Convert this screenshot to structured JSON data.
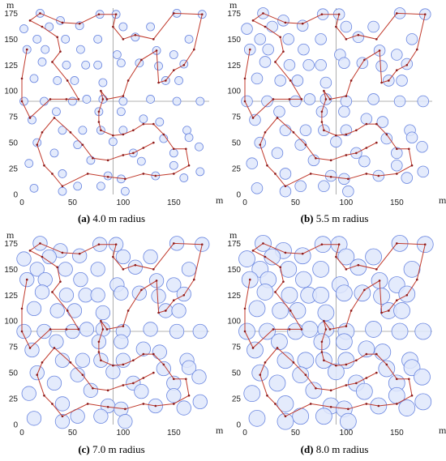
{
  "chart_data": [
    {
      "type": "scatter",
      "panel_label": "(a)",
      "caption": "4.0 m radius",
      "radius": 4.0,
      "xlabel": "m",
      "ylabel": "m",
      "xlim": [
        0,
        185
      ],
      "ylim": [
        0,
        180
      ],
      "xticks": [
        0,
        50,
        100,
        150
      ],
      "yticks": [
        0,
        25,
        50,
        75,
        100,
        125,
        150,
        175
      ],
      "crosshair": [
        90,
        90
      ],
      "grid": false
    },
    {
      "type": "scatter",
      "panel_label": "(b)",
      "caption": "5.5 m radius",
      "radius": 5.5,
      "xlabel": "m",
      "ylabel": "m",
      "xlim": [
        0,
        185
      ],
      "ylim": [
        0,
        180
      ],
      "xticks": [
        0,
        50,
        100,
        150
      ],
      "yticks": [
        0,
        25,
        50,
        75,
        100,
        125,
        150,
        175
      ],
      "crosshair": [
        90,
        90
      ],
      "grid": false
    },
    {
      "type": "scatter",
      "panel_label": "(c)",
      "caption": "7.0 m radius",
      "radius": 7.0,
      "xlabel": "m",
      "ylabel": "m",
      "xlim": [
        0,
        185
      ],
      "ylim": [
        0,
        180
      ],
      "xticks": [
        0,
        50,
        100,
        150
      ],
      "yticks": [
        0,
        25,
        50,
        75,
        100,
        125,
        150,
        175
      ],
      "crosshair": [
        90,
        90
      ],
      "grid": false
    },
    {
      "type": "scatter",
      "panel_label": "(d)",
      "caption": "8.0 m radius",
      "radius": 8.0,
      "xlabel": "m",
      "ylabel": "m",
      "xlim": [
        0,
        185
      ],
      "ylim": [
        0,
        180
      ],
      "xticks": [
        0,
        50,
        100,
        150
      ],
      "yticks": [
        0,
        25,
        50,
        75,
        100,
        125,
        150,
        175
      ],
      "crosshair": [
        90,
        90
      ],
      "grid": false
    }
  ],
  "sensor_points": [
    [
      18,
      175
    ],
    [
      38,
      168
    ],
    [
      27,
      162
    ],
    [
      57,
      163
    ],
    [
      77,
      174
    ],
    [
      93,
      174
    ],
    [
      100,
      162
    ],
    [
      127,
      162
    ],
    [
      153,
      175
    ],
    [
      178,
      174
    ],
    [
      2,
      160
    ],
    [
      15,
      150
    ],
    [
      43,
      150
    ],
    [
      75,
      150
    ],
    [
      112,
      152
    ],
    [
      165,
      150
    ],
    [
      5,
      140
    ],
    [
      23,
      140
    ],
    [
      58,
      140
    ],
    [
      94,
      135
    ],
    [
      133,
      139
    ],
    [
      150,
      135
    ],
    [
      20,
      128
    ],
    [
      44,
      125
    ],
    [
      63,
      125
    ],
    [
      75,
      125
    ],
    [
      98,
      127
    ],
    [
      116,
      127
    ],
    [
      135,
      124
    ],
    [
      160,
      126
    ],
    [
      12,
      112
    ],
    [
      35,
      110
    ],
    [
      52,
      110
    ],
    [
      80,
      108
    ],
    [
      142,
      110
    ],
    [
      155,
      110
    ],
    [
      2,
      90
    ],
    [
      22,
      90
    ],
    [
      50,
      90
    ],
    [
      64,
      92
    ],
    [
      80,
      92
    ],
    [
      100,
      90
    ],
    [
      127,
      92
    ],
    [
      153,
      90
    ],
    [
      176,
      90
    ],
    [
      10,
      72
    ],
    [
      34,
      80
    ],
    [
      76,
      80
    ],
    [
      98,
      80
    ],
    [
      120,
      73
    ],
    [
      40,
      62
    ],
    [
      60,
      62
    ],
    [
      78,
      62
    ],
    [
      100,
      62
    ],
    [
      136,
      70
    ],
    [
      163,
      62
    ],
    [
      15,
      50
    ],
    [
      55,
      48
    ],
    [
      90,
      51
    ],
    [
      140,
      54
    ],
    [
      165,
      55
    ],
    [
      175,
      46
    ],
    [
      32,
      40
    ],
    [
      110,
      40
    ],
    [
      150,
      40
    ],
    [
      7,
      30
    ],
    [
      68,
      33
    ],
    [
      118,
      32
    ],
    [
      150,
      28
    ],
    [
      176,
      22
    ],
    [
      40,
      20
    ],
    [
      85,
      18
    ],
    [
      98,
      15
    ],
    [
      132,
      18
    ],
    [
      160,
      16
    ],
    [
      12,
      6
    ],
    [
      40,
      3
    ],
    [
      55,
      8
    ],
    [
      78,
      8
    ],
    [
      102,
      3
    ]
  ],
  "route": [
    [
      5,
      140
    ],
    [
      0,
      112
    ],
    [
      0,
      90
    ],
    [
      8,
      74
    ],
    [
      28,
      92
    ],
    [
      44,
      92
    ],
    [
      56,
      92
    ],
    [
      45,
      110
    ],
    [
      30,
      128
    ],
    [
      38,
      138
    ],
    [
      35,
      152
    ],
    [
      20,
      162
    ],
    [
      8,
      168
    ],
    [
      18,
      175
    ],
    [
      40,
      166
    ],
    [
      57,
      165
    ],
    [
      76,
      174
    ],
    [
      93,
      174
    ],
    [
      90,
      162
    ],
    [
      100,
      150
    ],
    [
      112,
      154
    ],
    [
      130,
      150
    ],
    [
      150,
      175
    ],
    [
      178,
      174
    ],
    [
      170,
      140
    ],
    [
      160,
      125
    ],
    [
      150,
      120
    ],
    [
      142,
      110
    ],
    [
      135,
      108
    ],
    [
      133,
      139
    ],
    [
      118,
      130
    ],
    [
      105,
      110
    ],
    [
      100,
      95
    ],
    [
      84,
      92
    ],
    [
      78,
      100
    ],
    [
      80,
      92
    ],
    [
      76,
      80
    ],
    [
      76,
      70
    ],
    [
      78,
      62
    ],
    [
      90,
      57
    ],
    [
      100,
      58
    ],
    [
      110,
      62
    ],
    [
      120,
      68
    ],
    [
      130,
      68
    ],
    [
      140,
      58
    ],
    [
      150,
      44
    ],
    [
      162,
      44
    ],
    [
      165,
      28
    ],
    [
      150,
      20
    ],
    [
      132,
      18
    ],
    [
      120,
      20
    ],
    [
      102,
      15
    ],
    [
      85,
      17
    ],
    [
      65,
      20
    ],
    [
      40,
      8
    ],
    [
      30,
      20
    ],
    [
      22,
      28
    ],
    [
      15,
      48
    ],
    [
      20,
      60
    ],
    [
      32,
      74
    ],
    [
      48,
      60
    ],
    [
      60,
      48
    ],
    [
      70,
      35
    ],
    [
      85,
      33
    ],
    [
      100,
      38
    ],
    [
      110,
      40
    ],
    [
      120,
      45
    ],
    [
      130,
      50
    ]
  ]
}
